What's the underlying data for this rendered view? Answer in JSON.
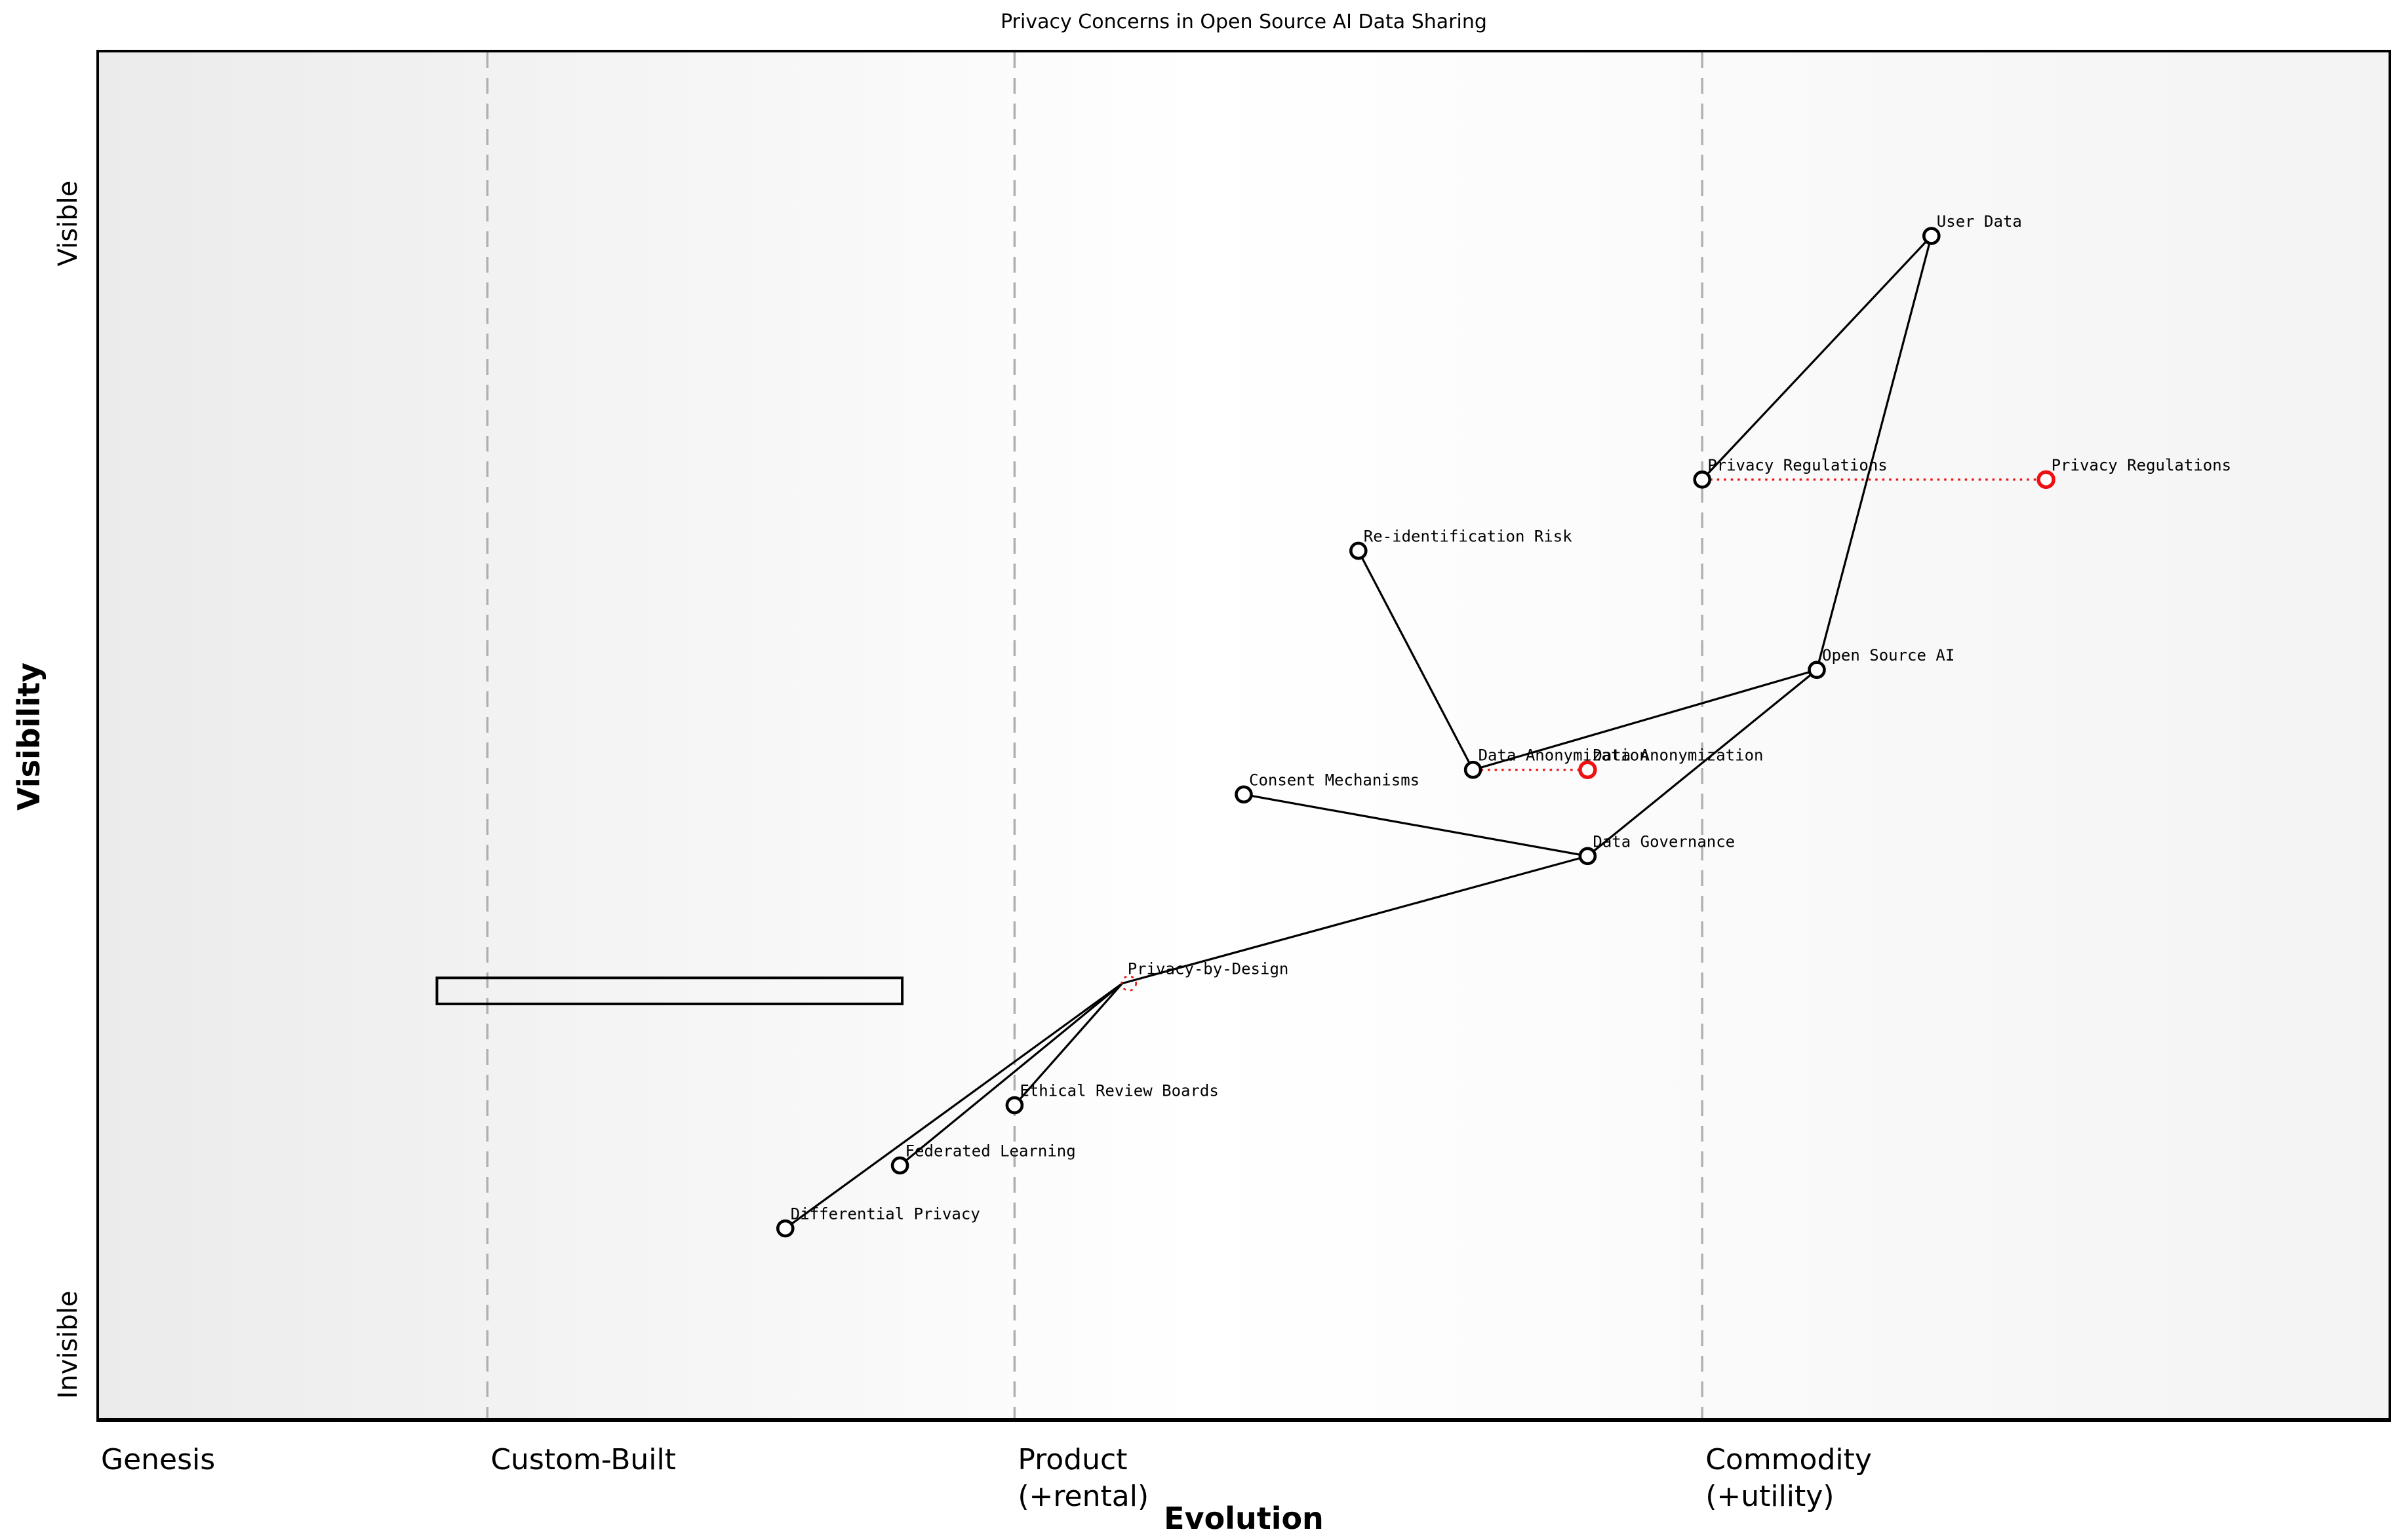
{
  "figure": {
    "title": "Privacy Concerns in Open Source AI Data Sharing",
    "x_axis_label": "Evolution",
    "y_axis_label": "Visibility"
  },
  "chart_data": {
    "type": "scatter",
    "subtype": "wardley-map",
    "title": "Privacy Concerns in Open Source AI Data Sharing",
    "xlabel": "Evolution",
    "ylabel": "Visibility",
    "xlim": [
      0,
      1
    ],
    "ylim": [
      0,
      1
    ],
    "grid": "stage-boundaries-dashed",
    "x_stages": [
      {
        "label": "Genesis",
        "sub": "",
        "boundary": 0.0
      },
      {
        "label": "Custom-Built",
        "sub": "",
        "boundary": 0.17
      },
      {
        "label": "Product",
        "sub": "(+rental)",
        "boundary": 0.4
      },
      {
        "label": "Commodity",
        "sub": "(+utility)",
        "boundary": 0.7
      }
    ],
    "y_ticks": [
      {
        "label": "Invisible",
        "pos": 0.055
      },
      {
        "label": "Visible",
        "pos": 0.874
      }
    ],
    "nodes": [
      {
        "id": "user-data",
        "label": "User Data",
        "x": 0.8,
        "y": 0.865,
        "style": "current"
      },
      {
        "id": "privacy-regulations",
        "label": "Privacy Regulations",
        "x": 0.7,
        "y": 0.687,
        "style": "current"
      },
      {
        "id": "privacy-regulations-evolved",
        "label": "Privacy Regulations",
        "x": 0.85,
        "y": 0.687,
        "style": "evolved"
      },
      {
        "id": "re-identification-risk",
        "label": "Re-identification Risk",
        "x": 0.55,
        "y": 0.635,
        "style": "current"
      },
      {
        "id": "open-source-ai",
        "label": "Open Source AI",
        "x": 0.75,
        "y": 0.548,
        "style": "current"
      },
      {
        "id": "data-anonymization",
        "label": "Data Anonymization",
        "x": 0.6,
        "y": 0.475,
        "style": "current"
      },
      {
        "id": "data-anonymization-evolved",
        "label": "Data Anonymization",
        "x": 0.65,
        "y": 0.475,
        "style": "evolved"
      },
      {
        "id": "consent-mechanisms",
        "label": "Consent Mechanisms",
        "x": 0.5,
        "y": 0.457,
        "style": "current"
      },
      {
        "id": "data-governance",
        "label": "Data Governance",
        "x": 0.65,
        "y": 0.412,
        "style": "current"
      },
      {
        "id": "privacy-by-design",
        "label": "Privacy-by-Design",
        "x": 0.447,
        "y": 0.319,
        "style": "planned"
      },
      {
        "id": "ethical-review-boards",
        "label": "Ethical Review Boards",
        "x": 0.4,
        "y": 0.23,
        "style": "current"
      },
      {
        "id": "federated-learning",
        "label": "Federated Learning",
        "x": 0.35,
        "y": 0.186,
        "style": "current"
      },
      {
        "id": "differential-privacy",
        "label": "Differential Privacy",
        "x": 0.3,
        "y": 0.14,
        "style": "current"
      }
    ],
    "edges": [
      [
        "user-data",
        "privacy-regulations"
      ],
      [
        "user-data",
        "open-source-ai"
      ],
      [
        "re-identification-risk",
        "data-anonymization"
      ],
      [
        "data-anonymization",
        "open-source-ai"
      ],
      [
        "consent-mechanisms",
        "data-governance"
      ],
      [
        "data-governance",
        "open-source-ai"
      ],
      [
        "privacy-by-design",
        "data-governance"
      ],
      [
        "privacy-by-design",
        "ethical-review-boards"
      ],
      [
        "privacy-by-design",
        "federated-learning"
      ],
      [
        "privacy-by-design",
        "differential-privacy"
      ]
    ],
    "movements": [
      [
        "privacy-regulations",
        "privacy-regulations-evolved"
      ],
      [
        "data-anonymization",
        "data-anonymization-evolved"
      ]
    ],
    "annotations": [
      {
        "type": "rect",
        "x0": 0.148,
        "x1": 0.351,
        "y0": 0.304,
        "y1": 0.323
      }
    ],
    "colors": {
      "node": "#000000",
      "edge": "#000000",
      "evolved": "#ee1111",
      "boundary": "#b0b0b0",
      "plot_border": "#000000"
    },
    "legend": "none"
  }
}
